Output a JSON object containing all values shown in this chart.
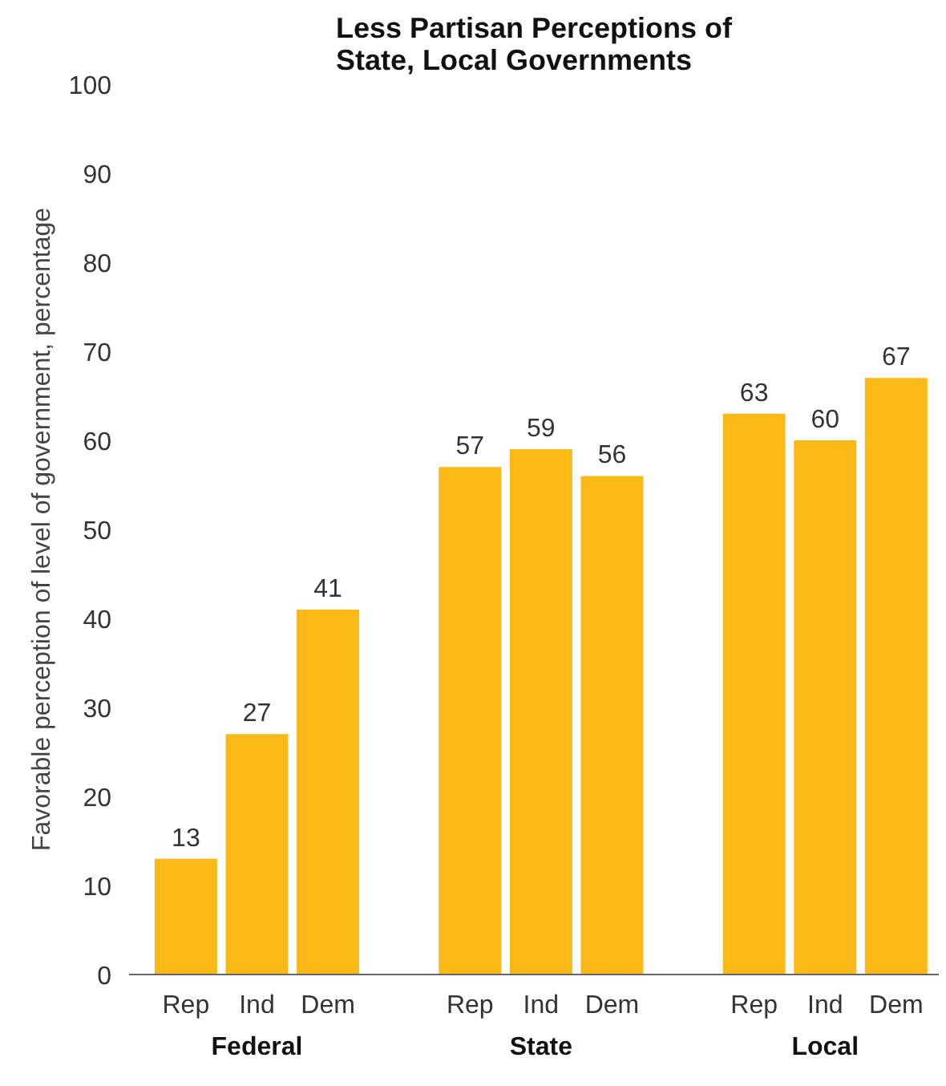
{
  "chart_data": {
    "type": "bar",
    "title": "Less Partisan Perceptions of\nState, Local Governments",
    "ylabel": "Favorable perception of level of government, percentage",
    "categories": [
      "Rep",
      "Ind",
      "Dem",
      "Rep",
      "Ind",
      "Dem",
      "Rep",
      "Ind",
      "Dem"
    ],
    "values": [
      13,
      27,
      41,
      57,
      59,
      56,
      63,
      60,
      67
    ],
    "color": "#fbb917",
    "ylim": [
      0,
      100
    ],
    "yticks": [
      0,
      10,
      20,
      30,
      40,
      50,
      60,
      70,
      80,
      90,
      100
    ],
    "grid": false,
    "data_labels": true,
    "annotations": [
      "Federal",
      "State",
      "Local"
    ]
  }
}
